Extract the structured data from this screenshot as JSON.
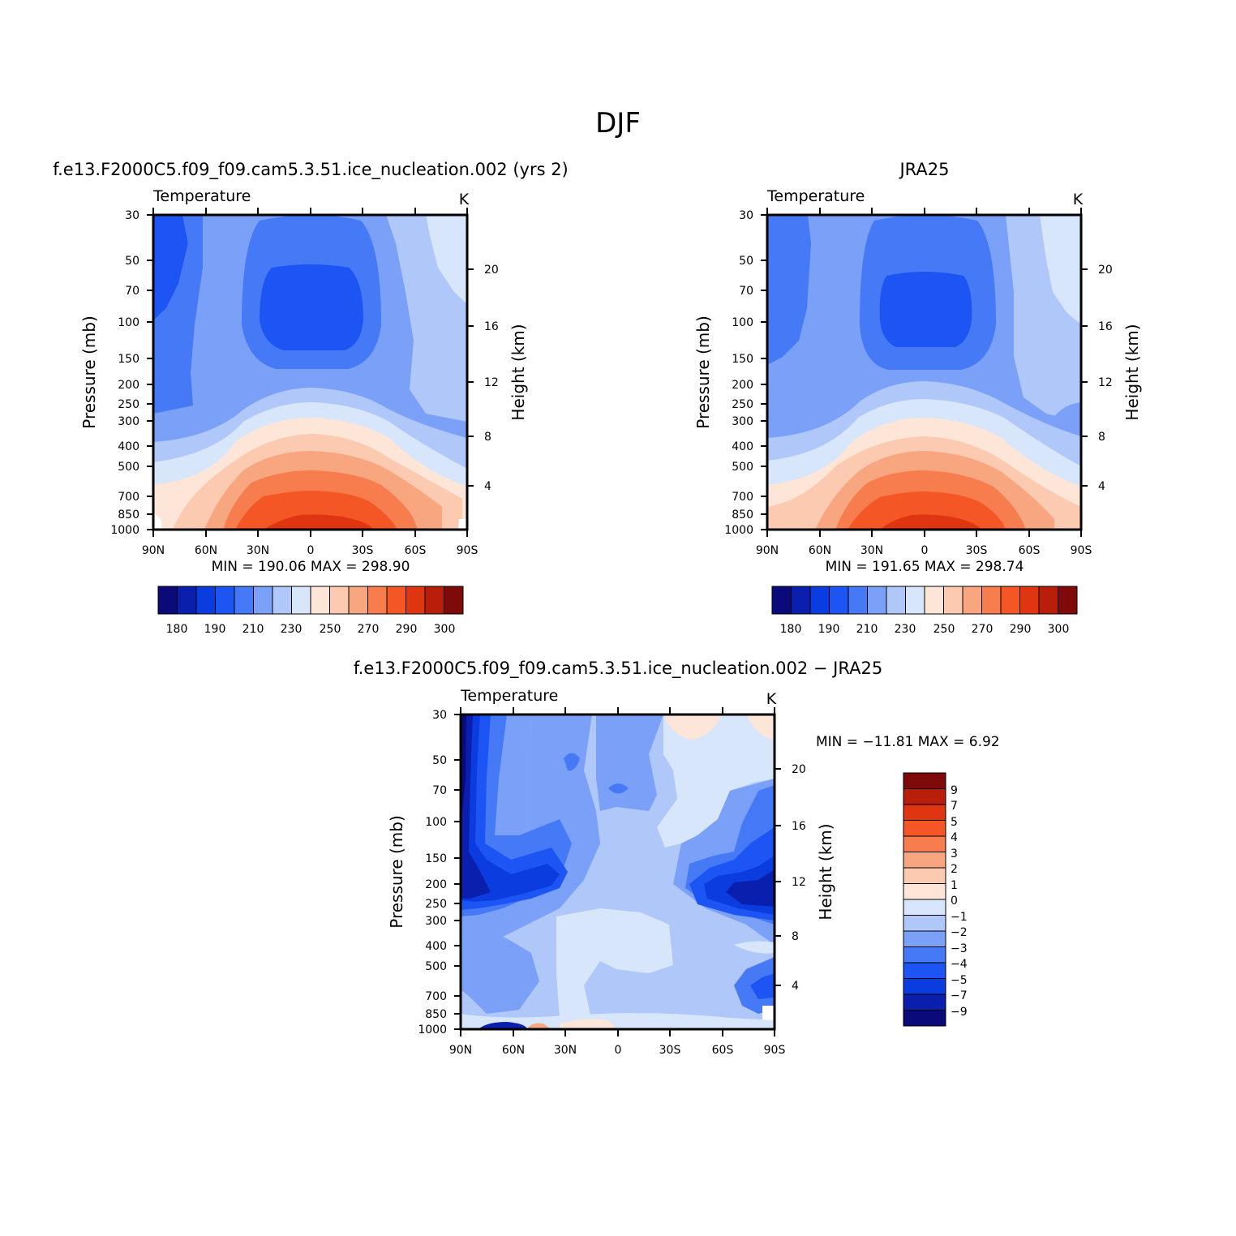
{
  "title": "DJF",
  "colors": {
    "temp_palette": [
      "#0a0a7a",
      "#0a1fae",
      "#0a3ce0",
      "#1d55f5",
      "#4679f5",
      "#7aa0f8",
      "#b0c8f9",
      "#d8e6fb",
      "#fde6d7",
      "#fccab0",
      "#f8a680",
      "#f77d4e",
      "#f45626",
      "#df3511",
      "#b81e0a",
      "#7f0a0a"
    ],
    "diff_palette": [
      "#0a0a7a",
      "#0a1fae",
      "#0a3ce0",
      "#1d55f5",
      "#4679f5",
      "#7aa0f8",
      "#b0c8f9",
      "#d8e6fb",
      "#fde6d7",
      "#fccab0",
      "#f8a680",
      "#f77d4e",
      "#f45626",
      "#df3511",
      "#b81e0a",
      "#7f0a0a"
    ]
  },
  "panels": [
    {
      "id": "model",
      "title": "f.e13.F2000C5.f09_f09.cam5.3.51.ice_nucleation.002 (yrs 2)",
      "variable": "Temperature",
      "units": "K",
      "ylabel": "Pressure (mb)",
      "y2label": "Height (km)",
      "minmax": "MIN = 190.06   MAX = 298.90"
    },
    {
      "id": "obs",
      "title": "JRA25",
      "variable": "Temperature",
      "units": "K",
      "ylabel": "Pressure (mb)",
      "y2label": "Height (km)",
      "minmax": "MIN = 191.65   MAX = 298.74"
    },
    {
      "id": "diff",
      "title": "f.e13.F2000C5.f09_f09.cam5.3.51.ice_nucleation.002 − JRA25",
      "variable": "Temperature",
      "units": "K",
      "ylabel": "Pressure (mb)",
      "y2label": "Height (km)",
      "minmax": "MIN = −11.81   MAX =     6.92"
    }
  ],
  "temp_colorbar_labels": [
    "180",
    "190",
    "210",
    "230",
    "250",
    "270",
    "290",
    "300"
  ],
  "diff_colorbar_labels": [
    "9",
    "7",
    "5",
    "4",
    "3",
    "2",
    "1",
    "0",
    "−1",
    "−2",
    "−3",
    "−4",
    "−5",
    "−7",
    "−9"
  ],
  "chart_data": [
    {
      "type": "heatmap",
      "title": "f.e13.F2000C5.f09_f09.cam5.3.51.ice_nucleation.002 (yrs 2)",
      "variable": "Temperature",
      "units": "K",
      "xlabel": "",
      "ylabel": "Pressure (mb)",
      "y2label": "Height (km)",
      "x_ticks": [
        "90N",
        "60N",
        "30N",
        "0",
        "30S",
        "60S",
        "90S"
      ],
      "y_ticks": [
        30,
        50,
        70,
        100,
        150,
        200,
        250,
        300,
        400,
        500,
        700,
        850,
        1000
      ],
      "y2_ticks": [
        4,
        8,
        12,
        16,
        20
      ],
      "ylim": [
        1000,
        30
      ],
      "xlim": [
        90,
        -90
      ],
      "contour_levels": [
        180,
        185,
        190,
        200,
        210,
        220,
        230,
        240,
        250,
        260,
        270,
        280,
        290,
        295,
        300
      ],
      "min": 190.06,
      "max": 298.9
    },
    {
      "type": "heatmap",
      "title": "JRA25",
      "variable": "Temperature",
      "units": "K",
      "xlabel": "",
      "ylabel": "Pressure (mb)",
      "y2label": "Height (km)",
      "x_ticks": [
        "90N",
        "60N",
        "30N",
        "0",
        "30S",
        "60S",
        "90S"
      ],
      "y_ticks": [
        30,
        50,
        70,
        100,
        150,
        200,
        250,
        300,
        400,
        500,
        700,
        850,
        1000
      ],
      "y2_ticks": [
        4,
        8,
        12,
        16,
        20
      ],
      "ylim": [
        1000,
        30
      ],
      "xlim": [
        90,
        -90
      ],
      "contour_levels": [
        180,
        185,
        190,
        200,
        210,
        220,
        230,
        240,
        250,
        260,
        270,
        280,
        290,
        295,
        300
      ],
      "min": 191.65,
      "max": 298.74
    },
    {
      "type": "heatmap",
      "title": "f.e13.F2000C5.f09_f09.cam5.3.51.ice_nucleation.002 − JRA25",
      "variable": "Temperature",
      "units": "K",
      "xlabel": "",
      "ylabel": "Pressure (mb)",
      "y2label": "Height (km)",
      "x_ticks": [
        "90N",
        "60N",
        "30N",
        "0",
        "30S",
        "60S",
        "90S"
      ],
      "y_ticks": [
        30,
        50,
        70,
        100,
        150,
        200,
        250,
        300,
        400,
        500,
        700,
        850,
        1000
      ],
      "y2_ticks": [
        4,
        8,
        12,
        16,
        20
      ],
      "ylim": [
        1000,
        30
      ],
      "xlim": [
        90,
        -90
      ],
      "contour_levels": [
        -9,
        -7,
        -5,
        -4,
        -3,
        -2,
        -1,
        0,
        1,
        2,
        3,
        4,
        5,
        7,
        9
      ],
      "min": -11.81,
      "max": 6.92
    }
  ]
}
